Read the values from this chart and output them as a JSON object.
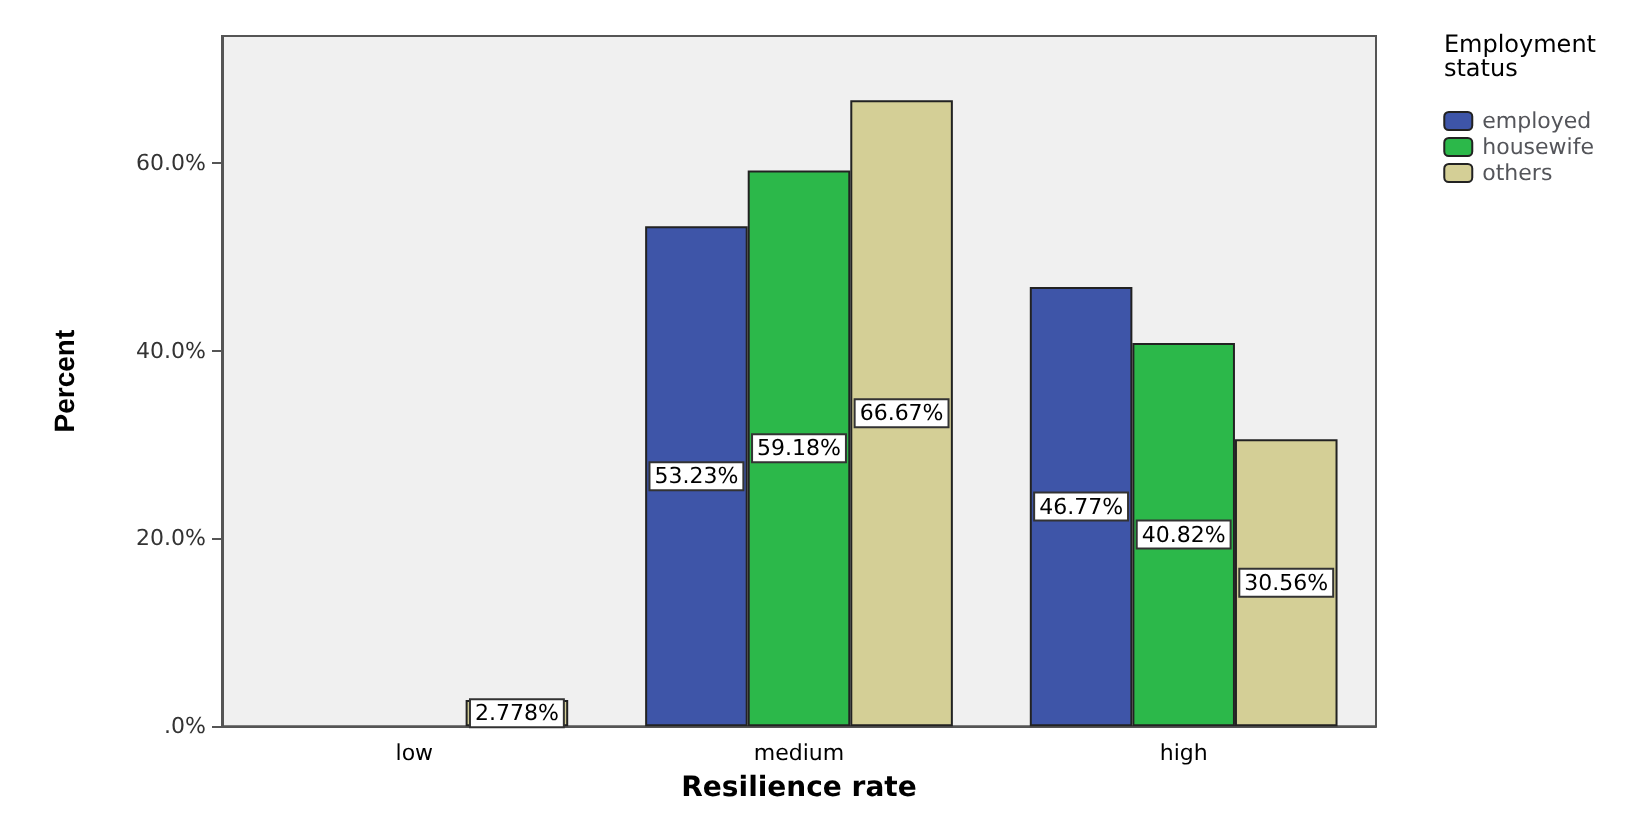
{
  "chart_data": {
    "type": "bar",
    "xlabel": "Resilience rate",
    "ylabel": "Percent",
    "legend_title": "Employment\nstatus",
    "legend": "right",
    "grid": false,
    "categories": [
      "low",
      "medium",
      "high"
    ],
    "series": [
      {
        "name": "employed",
        "color": "#3e55a8",
        "values": [
          null,
          53.23,
          46.77
        ],
        "value_labels": [
          null,
          "53.23%",
          "46.77%"
        ]
      },
      {
        "name": "housewife",
        "color": "#2cb84a",
        "values": [
          null,
          59.18,
          40.82
        ],
        "value_labels": [
          null,
          "59.18%",
          "40.82%"
        ]
      },
      {
        "name": "others",
        "color": "#d4cf96",
        "values": [
          2.778,
          66.67,
          30.56
        ],
        "value_labels": [
          "2.778%",
          "66.67%",
          "30.56%"
        ]
      }
    ],
    "ylim": [
      0,
      73.5
    ],
    "yticks": [
      {
        "value": 0,
        "label": ".0%"
      },
      {
        "value": 20,
        "label": "20.0%"
      },
      {
        "value": 40,
        "label": "40.0%"
      },
      {
        "value": 60,
        "label": "60.0%"
      }
    ]
  }
}
